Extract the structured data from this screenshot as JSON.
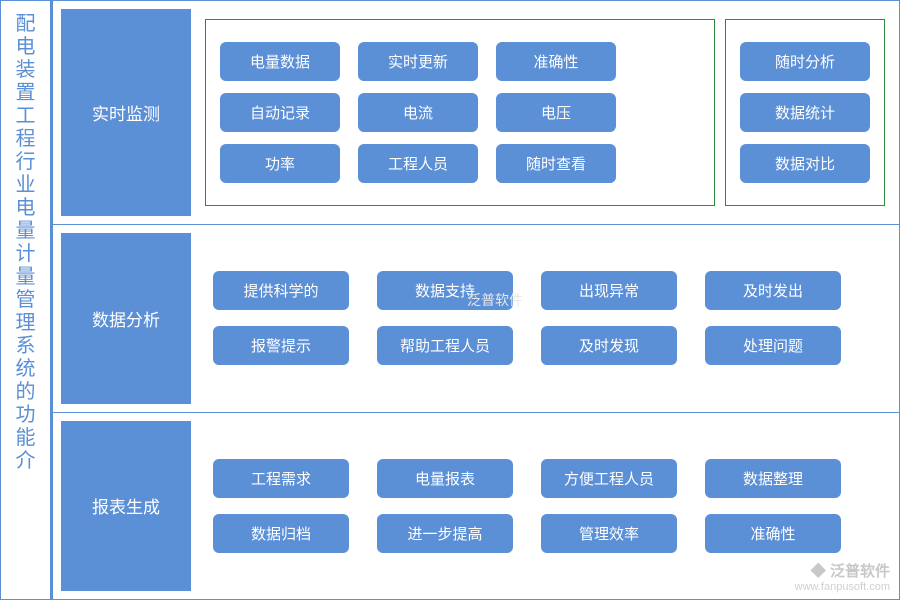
{
  "title_vertical": "配电装置工程行业电量计量管理系统的功能介",
  "colors": {
    "primary": "#5b8fd6",
    "border_green": "#2e8b3d",
    "text_white": "#ffffff",
    "background": "#ffffff"
  },
  "rows": [
    {
      "label": "实时监测",
      "layout": "two_green_boxes",
      "main_box": {
        "grid": [
          [
            "电量数据",
            "实时更新",
            "准确性"
          ],
          [
            "自动记录",
            "电流",
            "电压"
          ],
          [
            "功率",
            "工程人员",
            "随时查看"
          ]
        ]
      },
      "side_box": {
        "items": [
          "随时分析",
          "数据统计",
          "数据对比"
        ]
      }
    },
    {
      "label": "数据分析",
      "layout": "plain",
      "grid": [
        [
          "提供科学的",
          "数据支持",
          "出现异常",
          "及时发出"
        ],
        [
          "报警提示",
          "帮助工程人员",
          "及时发现",
          "处理问题"
        ]
      ]
    },
    {
      "label": "报表生成",
      "layout": "plain",
      "grid": [
        [
          "工程需求",
          "电量报表",
          "方便工程人员",
          "数据整理"
        ],
        [
          "数据归档",
          "进一步提高",
          "管理效率",
          "准确性"
        ]
      ]
    }
  ],
  "watermark": {
    "brand": "泛普软件",
    "url": "www.fanpusoft.com"
  },
  "styling": {
    "pill_border_radius": 6,
    "pill_font_size": 15,
    "label_font_size": 17,
    "title_font_size": 20
  }
}
